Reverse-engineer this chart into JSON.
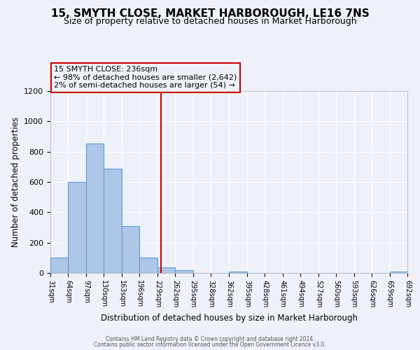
{
  "title": "15, SMYTH CLOSE, MARKET HARBOROUGH, LE16 7NS",
  "subtitle": "Size of property relative to detached houses in Market Harborough",
  "xlabel": "Distribution of detached houses by size in Market Harborough",
  "ylabel": "Number of detached properties",
  "bin_edges": [
    31,
    64,
    97,
    130,
    163,
    196,
    229,
    262,
    295,
    328,
    362,
    395,
    428,
    461,
    494,
    527,
    560,
    593,
    626,
    659,
    692
  ],
  "bin_counts": [
    100,
    600,
    855,
    690,
    310,
    100,
    35,
    20,
    0,
    0,
    10,
    0,
    0,
    0,
    0,
    0,
    0,
    0,
    0,
    10
  ],
  "bar_color": "#aec6e8",
  "bar_edge_color": "#5a9fd4",
  "property_line_x": 236,
  "property_line_color": "#cc0000",
  "annotation_title": "15 SMYTH CLOSE: 236sqm",
  "annotation_line1": "← 98% of detached houses are smaller (2,642)",
  "annotation_line2": "2% of semi-detached houses are larger (54) →",
  "annotation_box_color": "#cc0000",
  "ylim": [
    0,
    1200
  ],
  "yticks": [
    0,
    200,
    400,
    600,
    800,
    1000,
    1200
  ],
  "footnote1": "Contains HM Land Registry data © Crown copyright and database right 2024.",
  "footnote2": "Contains public sector information licensed under the Open Government Licence v3.0.",
  "background_color": "#eef2f8",
  "grid_color": "#ffffff",
  "title_fontsize": 11,
  "subtitle_fontsize": 9,
  "tick_label_fontsize": 7,
  "tick_label_rotation": 270,
  "annotation_fontsize": 8
}
